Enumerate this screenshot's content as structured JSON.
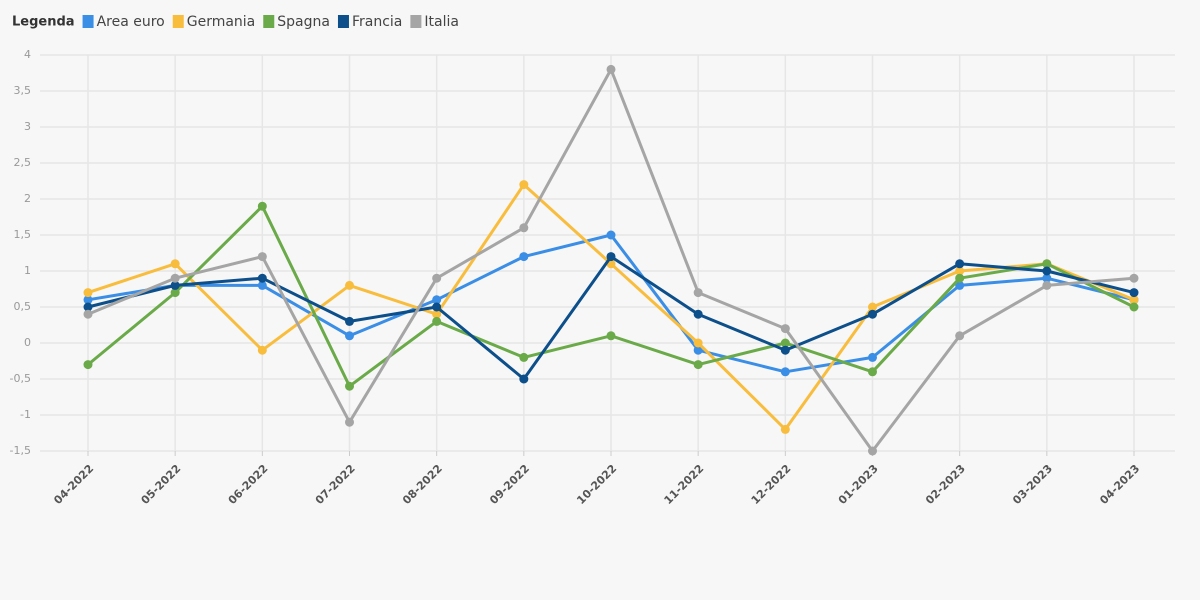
{
  "chart_data": {
    "type": "line",
    "legend_title": "Legenda",
    "legend": "top-left",
    "grid": true,
    "categories": [
      "04-2022",
      "05-2022",
      "06-2022",
      "07-2022",
      "08-2022",
      "09-2022",
      "10-2022",
      "11-2022",
      "12-2022",
      "01-2023",
      "02-2023",
      "03-2023",
      "04-2023"
    ],
    "series": [
      {
        "name": "Area euro",
        "color": "#3a8ee6",
        "values": [
          0.6,
          0.8,
          0.8,
          0.1,
          0.6,
          1.2,
          1.5,
          -0.1,
          -0.4,
          -0.2,
          0.8,
          0.9,
          0.6
        ]
      },
      {
        "name": "Germania",
        "color": "#f9bd3d",
        "values": [
          0.7,
          1.1,
          -0.1,
          0.8,
          0.4,
          2.2,
          1.1,
          0.0,
          -1.2,
          0.5,
          1.0,
          1.1,
          0.6
        ]
      },
      {
        "name": "Spagna",
        "color": "#6aaa48",
        "values": [
          -0.3,
          0.7,
          1.9,
          -0.6,
          0.3,
          -0.2,
          0.1,
          -0.3,
          0.0,
          -0.4,
          0.9,
          1.1,
          0.5
        ]
      },
      {
        "name": "Francia",
        "color": "#0c4f8a",
        "values": [
          0.5,
          0.8,
          0.9,
          0.3,
          0.5,
          -0.5,
          1.2,
          0.4,
          -0.1,
          0.4,
          1.1,
          1.0,
          0.7
        ]
      },
      {
        "name": "Italia",
        "color": "#a5a5a5",
        "values": [
          0.4,
          0.9,
          1.2,
          -1.1,
          0.9,
          1.6,
          3.8,
          0.7,
          0.2,
          -1.5,
          0.1,
          0.8,
          0.9
        ]
      }
    ],
    "ylim": [
      -1.5,
      4
    ],
    "yticks": [
      {
        "value": -1.5,
        "label": "-1,5"
      },
      -1,
      {
        "value": -0.5,
        "label": "-0,5"
      },
      0,
      {
        "value": 0.5,
        "label": "0,5"
      },
      1,
      {
        "value": 1.5,
        "label": "1,5"
      },
      2,
      {
        "value": 2.5,
        "label": "2,5"
      },
      3,
      {
        "value": 3.5,
        "label": "3,5"
      },
      4
    ]
  }
}
